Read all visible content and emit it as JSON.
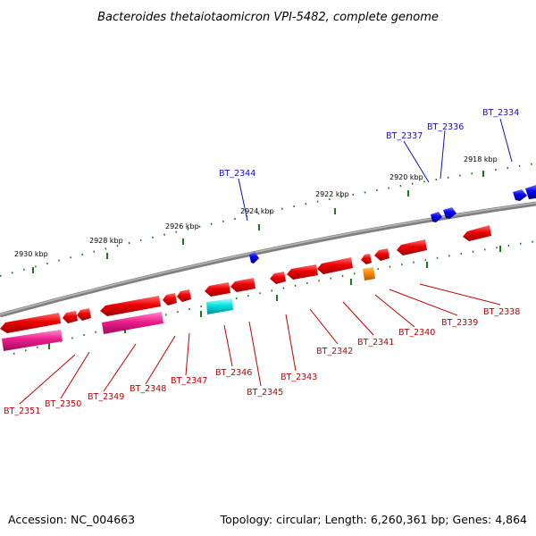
{
  "title": "Bacteroides thetaiotaomicron VPI-5482, complete genome",
  "footer": {
    "accession": "Accession: NC_004663",
    "summary": "Topology: circular; Length: 6,260,361 bp; Genes: 4,864"
  },
  "colors": {
    "backbone": "#808080",
    "ticks": "#1a7a1a",
    "forward_gene": "#0000ee",
    "reverse_gene": "#ee0000",
    "rna_gene": "#ee1c8c",
    "other_gene": "#00e0e0",
    "small_feature": "#ff8800",
    "label_blue": "#1010c0",
    "label_red": "#c00000"
  },
  "scale_labels": [
    {
      "text": "2930 kbp"
    },
    {
      "text": "2928 kbp"
    },
    {
      "text": "2926 kbp"
    },
    {
      "text": "2924 kbp"
    },
    {
      "text": "2922 kbp"
    },
    {
      "text": "2920 kbp"
    },
    {
      "text": "2918 kbp"
    }
  ],
  "forward_labels": [
    "BT_2344",
    "BT_2337",
    "BT_2336",
    "BT_2334"
  ],
  "reverse_labels": [
    "BT_2351",
    "BT_2350",
    "BT_2349",
    "BT_2348",
    "BT_2347",
    "BT_2346",
    "BT_2345",
    "BT_2343",
    "BT_2342",
    "BT_2341",
    "BT_2340",
    "BT_2339",
    "BT_2338"
  ]
}
